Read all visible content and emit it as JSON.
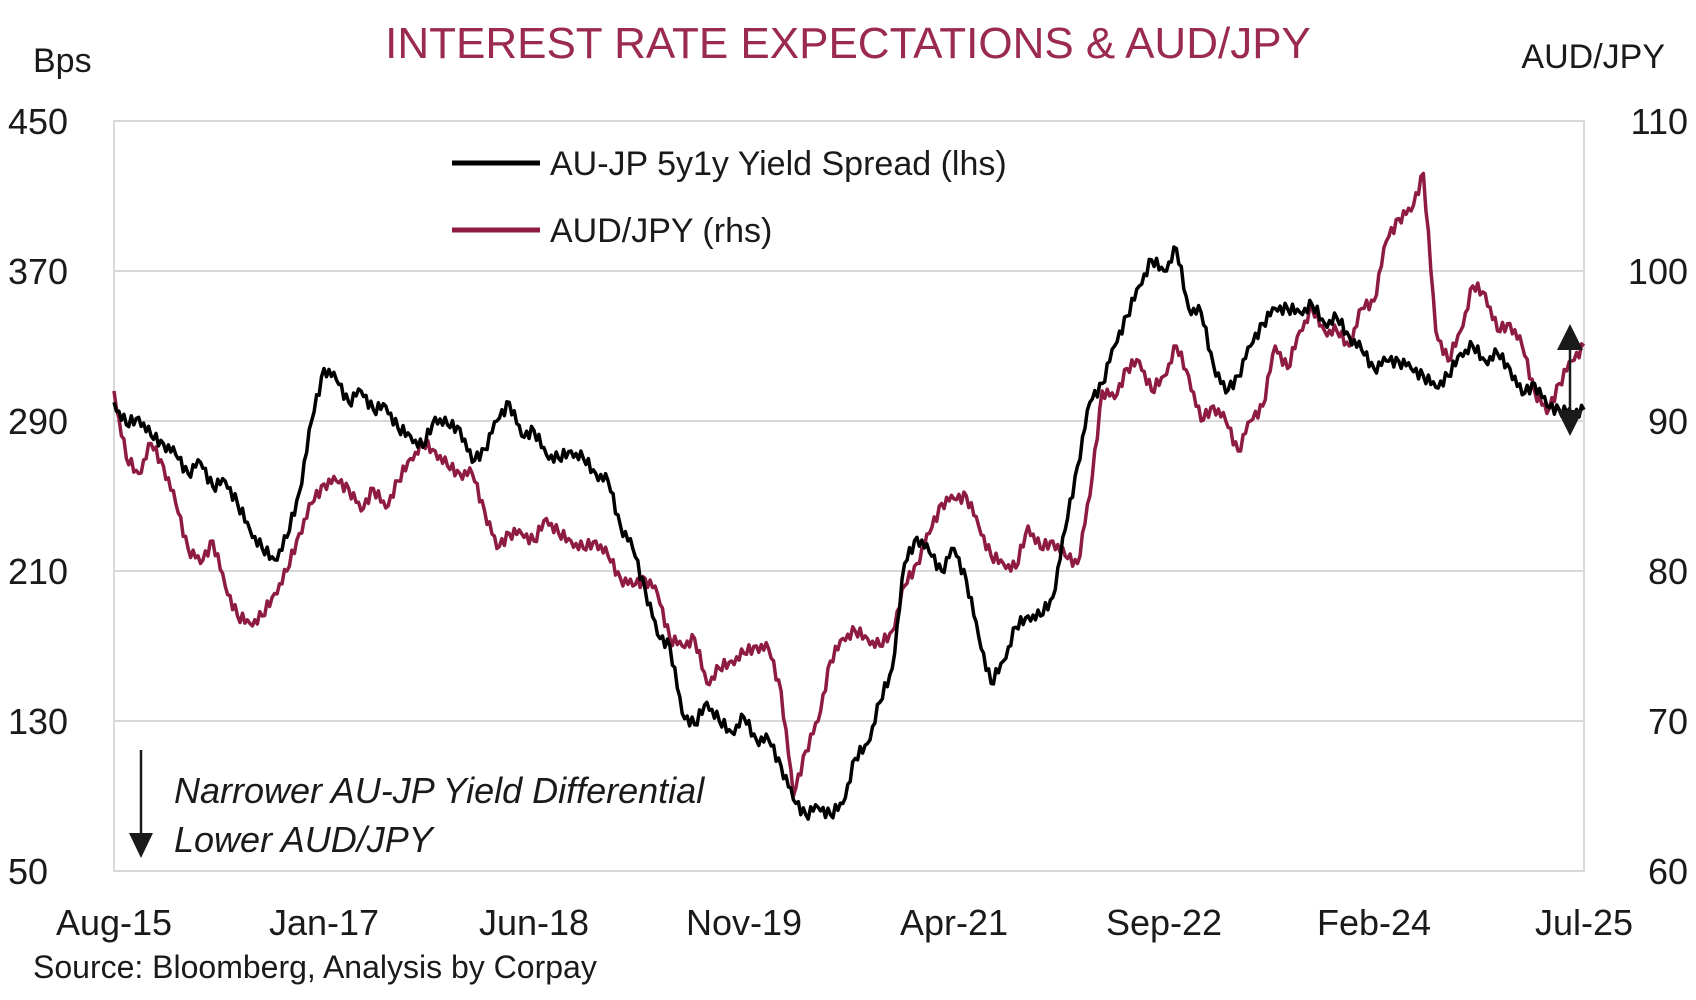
{
  "colors": {
    "spread": "#000000",
    "audjpy": "#8e1b44",
    "title": "#9b2a52",
    "grid": "#d9d9d9",
    "text": "#1a1a1a"
  },
  "chart_data": {
    "type": "line",
    "title": "INTEREST RATE EXPECTATIONS & AUD/JPY",
    "ylabel": "Bps",
    "y2label": "AUD/JPY",
    "xlabel": "",
    "ylim": [
      50,
      450
    ],
    "y2lim": [
      60,
      110
    ],
    "yticks": [
      "450",
      "370",
      "290",
      "210",
      "130",
      "50"
    ],
    "y2ticks": [
      "110",
      "100",
      "90",
      "80",
      "70",
      "60"
    ],
    "xlim": [
      "2015-08",
      "2025-07"
    ],
    "xticks": [
      "Aug-15",
      "Jan-17",
      "Jun-18",
      "Nov-19",
      "Apr-21",
      "Sep-22",
      "Feb-24",
      "Jul-25"
    ],
    "grid": "horizontal",
    "legend_position": "top-center",
    "series": [
      {
        "name": "AU-JP 5y1y Yield Spread (lhs)",
        "axis": "left",
        "x": [
          "2015-08",
          "2015-09",
          "2015-10",
          "2015-11",
          "2015-12",
          "2016-01",
          "2016-02",
          "2016-03",
          "2016-04",
          "2016-05",
          "2016-06",
          "2016-07",
          "2016-08",
          "2016-09",
          "2016-10",
          "2016-11",
          "2016-12",
          "2017-01",
          "2017-02",
          "2017-03",
          "2017-04",
          "2017-05",
          "2017-06",
          "2017-07",
          "2017-08",
          "2017-09",
          "2017-10",
          "2017-11",
          "2017-12",
          "2018-01",
          "2018-02",
          "2018-03",
          "2018-04",
          "2018-05",
          "2018-06",
          "2018-07",
          "2018-08",
          "2018-09",
          "2018-10",
          "2018-11",
          "2018-12",
          "2019-01",
          "2019-02",
          "2019-03",
          "2019-04",
          "2019-05",
          "2019-06",
          "2019-07",
          "2019-08",
          "2019-09",
          "2019-10",
          "2019-11",
          "2019-12",
          "2020-01",
          "2020-02",
          "2020-03",
          "2020-04",
          "2020-05",
          "2020-06",
          "2020-07",
          "2020-08",
          "2020-09",
          "2020-10",
          "2020-11",
          "2020-12",
          "2021-01",
          "2021-02",
          "2021-03",
          "2021-04",
          "2021-05",
          "2021-06",
          "2021-07",
          "2021-08",
          "2021-09",
          "2021-10",
          "2021-11",
          "2021-12",
          "2022-01",
          "2022-02",
          "2022-03",
          "2022-04",
          "2022-05",
          "2022-06",
          "2022-07",
          "2022-08",
          "2022-09",
          "2022-10",
          "2022-11",
          "2022-12",
          "2023-01",
          "2023-02",
          "2023-03",
          "2023-04",
          "2023-05",
          "2023-06",
          "2023-07",
          "2023-08",
          "2023-09",
          "2023-10",
          "2023-11",
          "2023-12",
          "2024-01",
          "2024-02",
          "2024-03",
          "2024-04",
          "2024-05",
          "2024-06",
          "2024-07",
          "2024-08",
          "2024-09",
          "2024-10",
          "2024-11",
          "2024-12",
          "2025-01",
          "2025-02",
          "2025-03",
          "2025-04",
          "2025-05",
          "2025-06",
          "2025-07"
        ],
        "values": [
          300,
          288,
          292,
          282,
          278,
          272,
          262,
          268,
          255,
          258,
          246,
          232,
          222,
          216,
          228,
          252,
          290,
          318,
          312,
          300,
          306,
          296,
          298,
          286,
          282,
          276,
          292,
          288,
          286,
          268,
          275,
          290,
          300,
          282,
          285,
          272,
          270,
          274,
          270,
          262,
          258,
          234,
          222,
          200,
          176,
          170,
          134,
          128,
          140,
          130,
          124,
          132,
          120,
          120,
          106,
          88,
          80,
          84,
          80,
          86,
          110,
          118,
          140,
          158,
          214,
          228,
          220,
          210,
          222,
          205,
          175,
          150,
          162,
          180,
          186,
          186,
          196,
          232,
          266,
          300,
          310,
          330,
          346,
          362,
          376,
          370,
          382,
          350,
          348,
          320,
          305,
          314,
          330,
          342,
          350,
          350,
          348,
          352,
          342,
          345,
          335,
          328,
          318,
          322,
          322,
          318,
          314,
          308,
          314,
          326,
          330,
          322,
          326,
          318,
          304,
          310,
          298,
          296,
          294,
          296
        ]
      },
      {
        "name": "AUD/JPY (rhs)",
        "axis": "right",
        "x": [
          "2015-08",
          "2015-09",
          "2015-10",
          "2015-11",
          "2015-12",
          "2016-01",
          "2016-02",
          "2016-03",
          "2016-04",
          "2016-05",
          "2016-06",
          "2016-07",
          "2016-08",
          "2016-09",
          "2016-10",
          "2016-11",
          "2016-12",
          "2017-01",
          "2017-02",
          "2017-03",
          "2017-04",
          "2017-05",
          "2017-06",
          "2017-07",
          "2017-08",
          "2017-09",
          "2017-10",
          "2017-11",
          "2017-12",
          "2018-01",
          "2018-02",
          "2018-03",
          "2018-04",
          "2018-05",
          "2018-06",
          "2018-07",
          "2018-08",
          "2018-09",
          "2018-10",
          "2018-11",
          "2018-12",
          "2019-01",
          "2019-02",
          "2019-03",
          "2019-04",
          "2019-05",
          "2019-06",
          "2019-07",
          "2019-08",
          "2019-09",
          "2019-10",
          "2019-11",
          "2019-12",
          "2020-01",
          "2020-02",
          "2020-03",
          "2020-04",
          "2020-05",
          "2020-06",
          "2020-07",
          "2020-08",
          "2020-09",
          "2020-10",
          "2020-11",
          "2020-12",
          "2021-01",
          "2021-02",
          "2021-03",
          "2021-04",
          "2021-05",
          "2021-06",
          "2021-07",
          "2021-08",
          "2021-09",
          "2021-10",
          "2021-11",
          "2021-12",
          "2022-01",
          "2022-02",
          "2022-03",
          "2022-04",
          "2022-05",
          "2022-06",
          "2022-07",
          "2022-08",
          "2022-09",
          "2022-10",
          "2022-11",
          "2022-12",
          "2023-01",
          "2023-02",
          "2023-03",
          "2023-04",
          "2023-05",
          "2023-06",
          "2023-07",
          "2023-08",
          "2023-09",
          "2023-10",
          "2023-11",
          "2023-12",
          "2024-01",
          "2024-02",
          "2024-03",
          "2024-04",
          "2024-05",
          "2024-06",
          "2024-07",
          "2024-08",
          "2024-09",
          "2024-10",
          "2024-11",
          "2024-12",
          "2025-01",
          "2025-02",
          "2025-03",
          "2025-04",
          "2025-05",
          "2025-06",
          "2025-07"
        ],
        "values": [
          92.0,
          87.5,
          86.5,
          88.5,
          87.0,
          84.5,
          81.5,
          80.5,
          82.0,
          79.0,
          77.0,
          76.5,
          77.0,
          78.5,
          80.0,
          82.5,
          84.5,
          85.8,
          86.0,
          85.5,
          84.0,
          85.5,
          84.2,
          86.0,
          87.5,
          88.5,
          88.0,
          87.0,
          86.5,
          86.5,
          84.0,
          81.5,
          82.5,
          82.5,
          82.0,
          83.5,
          82.5,
          82.0,
          81.5,
          82.0,
          81.0,
          79.5,
          79.0,
          79.5,
          78.5,
          75.5,
          75.0,
          75.5,
          72.5,
          73.5,
          74.0,
          74.5,
          75.0,
          74.8,
          72.0,
          65.0,
          68.0,
          70.0,
          74.0,
          75.5,
          76.0,
          75.5,
          75.0,
          76.0,
          79.0,
          80.5,
          82.5,
          84.5,
          84.8,
          85.0,
          83.0,
          81.0,
          80.5,
          80.2,
          83.0,
          81.5,
          82.0,
          81.0,
          80.5,
          85.0,
          92.0,
          91.5,
          93.5,
          94.0,
          92.0,
          93.0,
          95.0,
          93.0,
          90.0,
          91.0,
          90.0,
          88.0,
          90.0,
          91.0,
          95.0,
          93.5,
          96.0,
          97.5,
          96.0,
          96.0,
          95.0,
          97.5,
          98.0,
          102.0,
          103.5,
          104.0,
          106.5,
          96.0,
          94.0,
          96.0,
          99.0,
          98.5,
          96.0,
          96.5,
          95.0,
          92.0,
          90.5,
          92.5,
          94.0,
          95.0
        ]
      }
    ],
    "annotation_line1": "Narrower AU-JP Yield Differential",
    "annotation_line2": "Lower AUD/JPY",
    "source": "Source: Bloomberg, Analysis by Corpay"
  }
}
